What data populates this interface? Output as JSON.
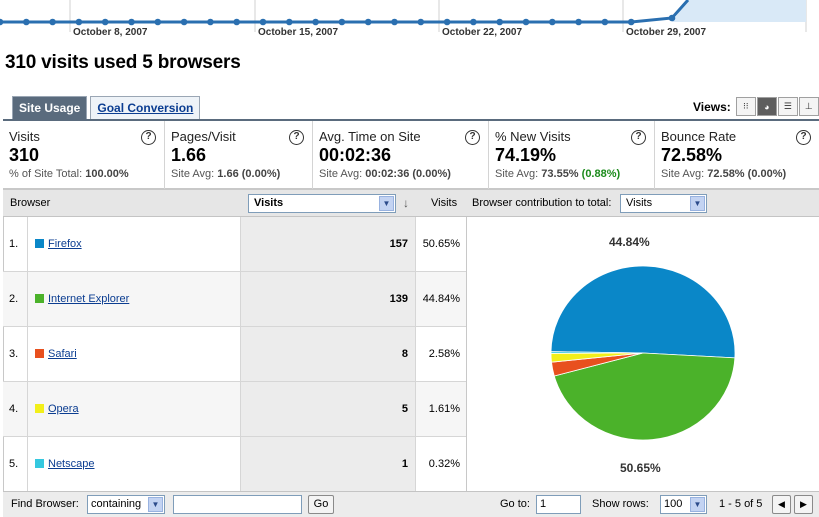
{
  "sparkline": {
    "dates": [
      "October 8, 2007",
      "October 15, 2007",
      "October 22, 2007",
      "October 29, 2007"
    ],
    "line_color": "#2a6fb0",
    "fill_color": "#d9e9f7"
  },
  "headline": "310 visits used 5 browsers",
  "tabs": [
    {
      "label": "Site Usage",
      "active": true
    },
    {
      "label": "Goal Conversion",
      "active": false
    }
  ],
  "views": {
    "label": "Views:",
    "buttons": [
      {
        "name": "table-view",
        "glyph": "⁝⁝",
        "active": false
      },
      {
        "name": "pie-view",
        "glyph": "◕",
        "active": true
      },
      {
        "name": "bar-view",
        "glyph": "☰",
        "active": false
      },
      {
        "name": "comparison-view",
        "glyph": "⊥",
        "active": false
      }
    ]
  },
  "metrics": [
    {
      "title": "Visits",
      "value": "310",
      "sub_prefix": "% of Site Total: ",
      "sub_value": "100.00%",
      "sub_delta": ""
    },
    {
      "title": "Pages/Visit",
      "value": "1.66",
      "sub_prefix": "Site Avg: ",
      "sub_value": "1.66",
      "sub_delta": "(0.00%)"
    },
    {
      "title": "Avg. Time on Site",
      "value": "00:02:36",
      "sub_prefix": "Site Avg: ",
      "sub_value": "00:02:36",
      "sub_delta": "(0.00%)"
    },
    {
      "title": "% New Visits",
      "value": "74.19%",
      "sub_prefix": "Site Avg: ",
      "sub_value": "73.55%",
      "sub_delta": "(0.88%)"
    },
    {
      "title": "Bounce Rate",
      "value": "72.58%",
      "sub_prefix": "Site Avg: ",
      "sub_value": "72.58%",
      "sub_delta": "(0.00%)"
    }
  ],
  "help_glyph": "?",
  "table": {
    "col_dimension": "Browser",
    "metric_select": "Visits",
    "col_visits": "Visits",
    "contribution_label": "Browser contribution to total:",
    "contribution_select": "Visits",
    "sort_glyph": "↓",
    "dropdown_glyph": "▼",
    "rows": [
      {
        "idx": "1.",
        "name": "Firefox",
        "visits": "157",
        "pct": "50.65%",
        "color": "#0a87c8"
      },
      {
        "idx": "2.",
        "name": "Internet Explorer",
        "visits": "139",
        "pct": "44.84%",
        "color": "#4bb22a"
      },
      {
        "idx": "3.",
        "name": "Safari",
        "visits": "8",
        "pct": "2.58%",
        "color": "#e8501e"
      },
      {
        "idx": "4.",
        "name": "Opera",
        "visits": "5",
        "pct": "1.61%",
        "color": "#f2ef1a"
      },
      {
        "idx": "5.",
        "name": "Netscape",
        "visits": "1",
        "pct": "0.32%",
        "color": "#35c8df"
      }
    ]
  },
  "pie_labels": {
    "top": "44.84%",
    "bottom": "50.65%"
  },
  "footer": {
    "find_label": "Find Browser:",
    "find_mode": "containing",
    "find_value": "",
    "go_label": "Go",
    "goto_label": "Go to:",
    "goto_value": "1",
    "show_rows_label": "Show rows:",
    "show_rows_value": "100",
    "range": "1 - 5 of 5",
    "prev_glyph": "◀",
    "next_glyph": "▶"
  }
}
